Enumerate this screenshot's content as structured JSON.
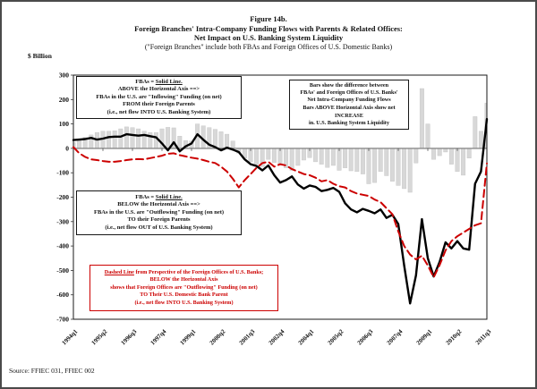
{
  "figure": {
    "title_line1": "Figure 14b.",
    "title_line2": "Foreign Branches' Intra-Company Funding Flows with Parents & Related Offices:",
    "title_line3": "Net Impact on U.S. Banking System Liquidity",
    "title_line4": "(\"Foreign Branches\" include both FBAs and Foreign Offices of U.S. Domestic Banks)",
    "y_axis_title": "$ Billion",
    "source": "Source: FFIEC 031, FFIEC 002"
  },
  "annotations": {
    "fba_above": {
      "line1_prefix": "FBAs = ",
      "line1_underlined": "Solid Line.",
      "line2": "ABOVE the Horizontal Axis ==>",
      "line3": "FBAs in the U.S. are \"Inflowing\" Funding (on net)",
      "line4": "FROM their Foreign Parents",
      "line5": "(i.e., net flow INTO U.S. Banking System)"
    },
    "bars_note": {
      "line1": "Bars show the difference between",
      "line2": "FBAs'  and Foreign Offices of U.S. Banks'",
      "line3": "Net Intra-Company Funding Flows",
      "line4": "Bars ABOVE Horizontal Axis show net INCREASE",
      "line5": "in. U.S. Banking System Liquidity"
    },
    "fba_below": {
      "line1_prefix": "FBAs = ",
      "line1_underlined": "Solid Line.",
      "line2": "BELOW the Horizontal Axis ==>",
      "line3": "FBAs in the U.S. are \"Outflowing\" Funding (on net)",
      "line4": "TO their Foreign Parents",
      "line5": "(i.e., net flow OUT of U.S. Banking System)"
    },
    "dashed_note": {
      "line1_underlined": "Dashed Line",
      "line1_rest": " from Perspective of the Foreign Offices of U.S. Banks;",
      "line2": "BELOW the Horizontal Axis",
      "line3": "shows that Foreign Offices are \"Outflowing\" Funding (on net)",
      "line4": "TO Their U.S. Domestic Bank Parent",
      "line5": "(i.e., net flow INTO U.S. Banking System)"
    }
  },
  "colors": {
    "bars": "#d8d8d8",
    "bar_stroke": "#c2c2c2",
    "fba_line": "#000000",
    "foreign_offices_line": "#cc0000",
    "zero_axis": "#8a8a8a",
    "plot_border": "#1a1a1a",
    "annotation_red": "#cc0000"
  },
  "chart_data": {
    "type": "combo-bar-line",
    "title": "Figure 14b. Foreign Branches' Intra-Company Funding Flows with Parents & Related Offices: Net Impact on U.S. Banking System Liquidity",
    "xlabel": "",
    "ylabel": "$ Billion",
    "ylim": [
      -700,
      300
    ],
    "y_ticks": [
      300,
      200,
      100,
      0,
      -100,
      -200,
      -300,
      -400,
      -500,
      -600,
      -700
    ],
    "grid": false,
    "legend_position": "none",
    "x_tick_every": 5,
    "x_tick_labels": [
      "1994q1",
      "1995q2",
      "1996q3",
      "1997q4",
      "1999q1",
      "2000q2",
      "2001q3",
      "2002q4",
      "2004q1",
      "2005q2",
      "2006q3",
      "2007q4",
      "2009q1",
      "2010q2",
      "2011q3"
    ],
    "x": [
      "1994q1",
      "1994q2",
      "1994q3",
      "1994q4",
      "1995q1",
      "1995q2",
      "1995q3",
      "1995q4",
      "1996q1",
      "1996q2",
      "1996q3",
      "1996q4",
      "1997q1",
      "1997q2",
      "1997q3",
      "1997q4",
      "1998q1",
      "1998q2",
      "1998q3",
      "1998q4",
      "1999q1",
      "1999q2",
      "1999q3",
      "1999q4",
      "2000q1",
      "2000q2",
      "2000q3",
      "2000q4",
      "2001q1",
      "2001q2",
      "2001q3",
      "2001q4",
      "2002q1",
      "2002q2",
      "2002q3",
      "2002q4",
      "2003q1",
      "2003q2",
      "2003q3",
      "2003q4",
      "2004q1",
      "2004q2",
      "2004q3",
      "2004q4",
      "2005q1",
      "2005q2",
      "2005q3",
      "2005q4",
      "2006q1",
      "2006q2",
      "2006q3",
      "2006q4",
      "2007q1",
      "2007q2",
      "2007q3",
      "2007q4",
      "2008q1",
      "2008q2",
      "2008q3",
      "2008q4",
      "2009q1",
      "2009q2",
      "2009q3",
      "2009q4",
      "2010q1",
      "2010q2",
      "2010q3",
      "2010q4",
      "2011q1",
      "2011q2",
      "2011q3"
    ],
    "series": [
      {
        "name": "Difference between FBAs' and Foreign Offices of U.S. Banks' net intra-company funding flows (bars)",
        "type": "bar",
        "color": "#d8d8d8",
        "values": [
          24,
          32,
          45,
          55,
          65,
          70,
          70,
          72,
          80,
          88,
          85,
          80,
          70,
          65,
          65,
          80,
          86,
          84,
          50,
          32,
          30,
          100,
          92,
          85,
          78,
          68,
          58,
          30,
          -20,
          -40,
          -55,
          -65,
          -75,
          -45,
          -58,
          -65,
          -80,
          -90,
          -70,
          -48,
          -38,
          -55,
          -65,
          -78,
          -70,
          -90,
          -80,
          -92,
          -95,
          -105,
          -145,
          -140,
          -95,
          -112,
          -135,
          -152,
          -165,
          -180,
          -60,
          245,
          100,
          -45,
          -30,
          -15,
          -65,
          -95,
          -110,
          -40,
          130,
          70,
          185
        ]
      },
      {
        "name": "FBAs net intra-company funding flows (solid line)",
        "type": "line",
        "color": "#000000",
        "dashed": false,
        "values": [
          34,
          36,
          38,
          43,
          36,
          40,
          46,
          48,
          48,
          58,
          55,
          52,
          55,
          50,
          45,
          20,
          -8,
          25,
          -12,
          8,
          20,
          58,
          35,
          15,
          5,
          -8,
          3,
          -5,
          -15,
          -45,
          -65,
          -72,
          -90,
          -70,
          -110,
          -140,
          -130,
          -115,
          -148,
          -165,
          -152,
          -158,
          -175,
          -170,
          -162,
          -178,
          -225,
          -250,
          -262,
          -248,
          -256,
          -266,
          -250,
          -285,
          -272,
          -310,
          -480,
          -635,
          -520,
          -290,
          -450,
          -525,
          -465,
          -385,
          -410,
          -380,
          -410,
          -415,
          -145,
          -95,
          120
        ]
      },
      {
        "name": "Foreign Offices of U.S. Banks net intra-company funding flows (dashed line)",
        "type": "line",
        "color": "#cc0000",
        "dashed": true,
        "values": [
          5,
          -20,
          -35,
          -45,
          -48,
          -52,
          -55,
          -55,
          -52,
          -48,
          -45,
          -44,
          -45,
          -40,
          -35,
          -30,
          -22,
          -20,
          -28,
          -33,
          -38,
          -42,
          -48,
          -55,
          -60,
          -75,
          -95,
          -125,
          -160,
          -130,
          -105,
          -80,
          -60,
          -55,
          -75,
          -65,
          -70,
          -85,
          -95,
          -105,
          -110,
          -120,
          -135,
          -130,
          -145,
          -155,
          -160,
          -175,
          -185,
          -190,
          -195,
          -210,
          -220,
          -245,
          -270,
          -340,
          -400,
          -435,
          -455,
          -440,
          -480,
          -528,
          -478,
          -418,
          -380,
          -360,
          -345,
          -330,
          -315,
          -307,
          -62
        ]
      }
    ]
  }
}
